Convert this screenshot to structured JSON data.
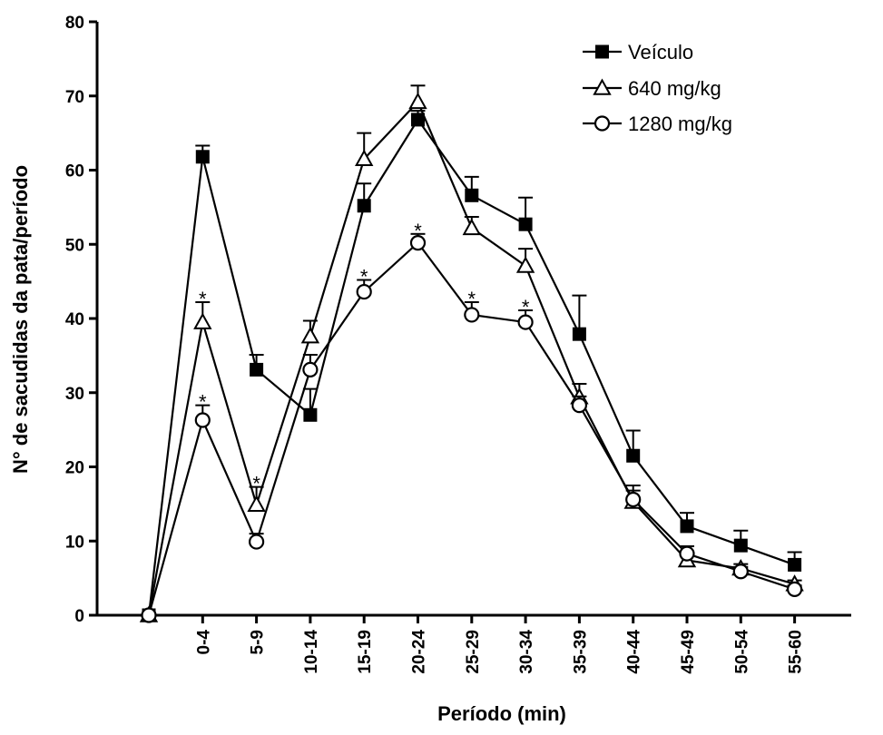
{
  "chart_data": {
    "type": "line",
    "title": "",
    "xlabel": "Período (min)",
    "ylabel": "N° de sacudidas da pata/período",
    "ylim": [
      0,
      80
    ],
    "yticks": [
      0,
      10,
      20,
      30,
      40,
      50,
      60,
      70,
      80
    ],
    "x_tick_labels": [
      "0-4",
      "5-9",
      "10-14",
      "15-19",
      "20-24",
      "25-29",
      "30-34",
      "35-39",
      "40-44",
      "45-49",
      "50-54",
      "55-60"
    ],
    "grid": false,
    "legend_position": "top-right",
    "significance_marker": "*",
    "series": [
      {
        "name": "Veículo",
        "marker": "filled-square",
        "x": [
          0,
          1,
          2,
          3,
          4,
          5,
          6,
          7,
          8,
          9,
          10,
          11,
          12
        ],
        "y": [
          0,
          61.8,
          33.1,
          27.0,
          55.2,
          66.8,
          56.6,
          52.7,
          37.9,
          21.5,
          12.0,
          9.4,
          6.8
        ],
        "error": [
          0,
          1.5,
          2.0,
          3.5,
          3.0,
          1.2,
          2.5,
          3.6,
          5.2,
          3.4,
          1.8,
          2.0,
          1.7
        ],
        "significant": [
          false,
          false,
          false,
          false,
          false,
          false,
          false,
          false,
          false,
          false,
          false,
          false,
          false
        ]
      },
      {
        "name": "640 mg/kg",
        "marker": "open-triangle",
        "x": [
          0,
          1,
          2,
          3,
          4,
          5,
          6,
          7,
          8,
          9,
          10,
          11,
          12
        ],
        "y": [
          0,
          39.5,
          14.9,
          37.6,
          61.5,
          69.2,
          52.2,
          47.1,
          29.4,
          15.3,
          7.4,
          6.3,
          4.2
        ],
        "error": [
          0,
          2.7,
          2.4,
          2.1,
          3.5,
          2.2,
          1.5,
          2.3,
          1.8,
          2.2,
          0.9,
          0.6,
          0.5
        ],
        "significant": [
          false,
          true,
          true,
          false,
          false,
          false,
          false,
          false,
          false,
          false,
          false,
          false,
          false
        ]
      },
      {
        "name": "1280 mg/kg",
        "marker": "open-circle",
        "x": [
          0,
          1,
          2,
          3,
          4,
          5,
          6,
          7,
          8,
          9,
          10,
          11,
          12
        ],
        "y": [
          0,
          26.3,
          9.9,
          33.1,
          43.6,
          50.2,
          40.5,
          39.5,
          28.3,
          15.6,
          8.3,
          5.9,
          3.5
        ],
        "error": [
          0,
          2.0,
          1.1,
          2.0,
          1.6,
          1.2,
          1.7,
          1.6,
          1.2,
          1.2,
          1.0,
          0.6,
          0.5
        ],
        "significant": [
          false,
          true,
          false,
          false,
          true,
          true,
          true,
          true,
          false,
          false,
          false,
          false,
          false
        ]
      }
    ]
  }
}
